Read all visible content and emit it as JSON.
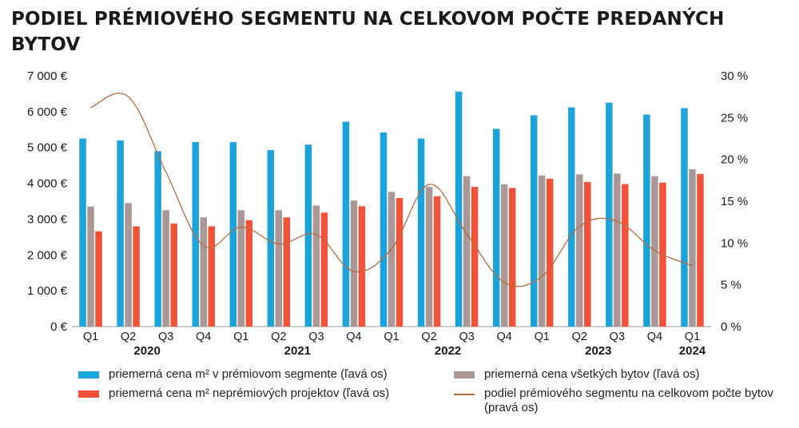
{
  "title": "PODIEL PRÉMIOVÉHO SEGMENTU NA CELKOVOM POČTE PREDANÝCH BYTOV",
  "colors": {
    "premium": "#1da3dc",
    "all": "#ab9795",
    "nonpremium": "#f0533a",
    "share": "#b86b3c"
  },
  "chart_data": {
    "type": "bar",
    "categories": [
      "Q1",
      "Q2",
      "Q3",
      "Q4",
      "Q1",
      "Q2",
      "Q3",
      "Q4",
      "Q1",
      "Q2",
      "Q3",
      "Q4",
      "Q1",
      "Q2",
      "Q3",
      "Q4",
      "Q1"
    ],
    "years": [
      {
        "label": "2020",
        "center_index": 1.5
      },
      {
        "label": "2021",
        "center_index": 5.5
      },
      {
        "label": "2022",
        "center_index": 9.5
      },
      {
        "label": "2023",
        "center_index": 13.5
      },
      {
        "label": "2024",
        "center_index": 16
      }
    ],
    "left_axis": {
      "ylim": [
        0,
        7000
      ],
      "ticks": [
        0,
        1000,
        2000,
        3000,
        4000,
        5000,
        6000,
        7000
      ],
      "tick_labels": [
        "0 €",
        "1 000 €",
        "2 000 €",
        "3 000 €",
        "4 000 €",
        "5 000 €",
        "6 000 €",
        "7 000 €"
      ]
    },
    "right_axis": {
      "ylim": [
        0,
        30
      ],
      "ticks": [
        0,
        5,
        10,
        15,
        20,
        25,
        30
      ],
      "tick_labels": [
        "0 %",
        "5 %",
        "10 %",
        "15 %",
        "20 %",
        "25 %",
        "30 %"
      ]
    },
    "series": [
      {
        "name": "priemerná cena m² v prémiovom segmente (ľavá os)",
        "type": "bar",
        "axis": "left",
        "values": [
          5250,
          5200,
          4900,
          5150,
          5150,
          4930,
          5080,
          5720,
          5420,
          5250,
          6560,
          5520,
          5900,
          6120,
          6250,
          5920,
          6100
        ]
      },
      {
        "name": "priemerná cena všetkých bytov (ľavá os)",
        "type": "bar",
        "axis": "left",
        "values": [
          3350,
          3450,
          3250,
          3050,
          3250,
          3250,
          3380,
          3520,
          3760,
          3900,
          4200,
          3970,
          4220,
          4250,
          4270,
          4200,
          4390
        ]
      },
      {
        "name": "priemerná cena m² neprémiových projektov (ľavá os)",
        "type": "bar",
        "axis": "left",
        "values": [
          2660,
          2800,
          2880,
          2800,
          2970,
          3050,
          3180,
          3360,
          3590,
          3640,
          3900,
          3870,
          4130,
          4040,
          3980,
          4020,
          4260
        ]
      },
      {
        "name": "podiel prémiového segmentu na celkovom počte bytov (pravá os)",
        "type": "line",
        "axis": "right",
        "values": [
          26.2,
          27.5,
          18.5,
          9.7,
          11.9,
          9.9,
          11.0,
          6.6,
          9.3,
          17.0,
          11.1,
          5.3,
          6.0,
          12.0,
          12.6,
          9.1,
          7.3
        ]
      }
    ]
  },
  "legend": [
    {
      "label": "priemerná cena m² v prémiovom segmente (ľavá os)",
      "kind": "bar",
      "color": "#1da3dc"
    },
    {
      "label": "priemerná cena všetkých bytov (ľavá os)",
      "kind": "bar",
      "color": "#ab9795"
    },
    {
      "label": "priemerná cena m² neprémiových projektov (ľavá os)",
      "kind": "bar",
      "color": "#f0533a"
    },
    {
      "label": "podiel prémiového segmentu na celkovom počte bytov (pravá os)",
      "kind": "line",
      "color": "#b86b3c"
    }
  ]
}
